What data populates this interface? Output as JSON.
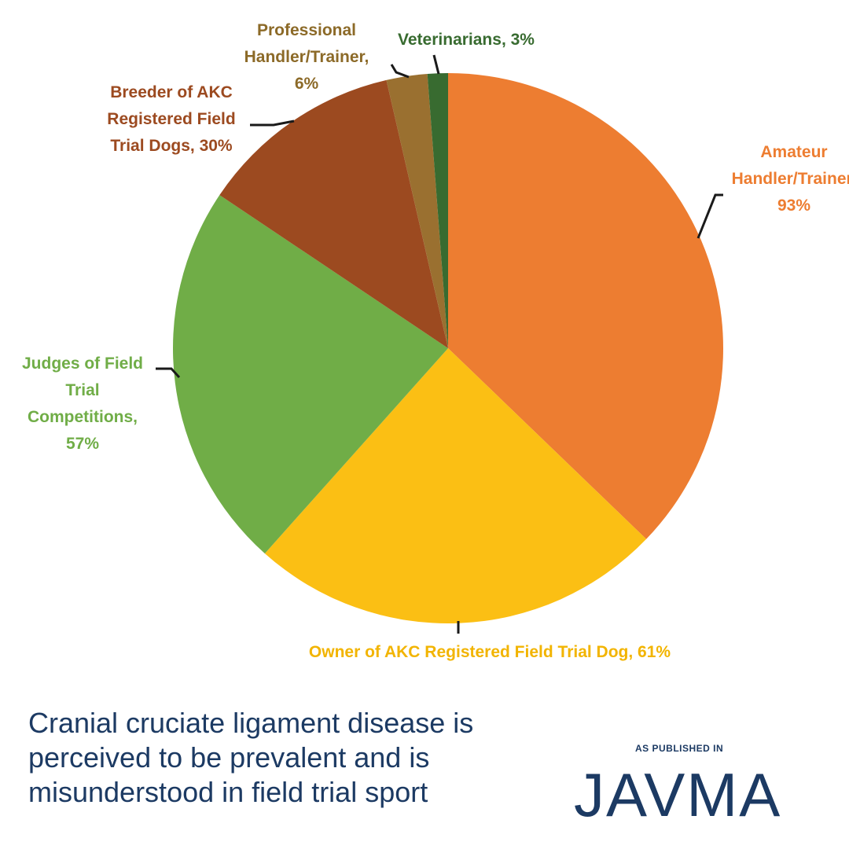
{
  "chart_data": {
    "type": "pie",
    "slices": [
      {
        "label_lines": [
          "Amateur",
          "Handler/Trainer,",
          "93%"
        ],
        "value": 93,
        "color": "#ed7d31"
      },
      {
        "label_lines": [
          "Owner of AKC Registered Field Trial Dog, 61%"
        ],
        "value": 61,
        "color": "#fbbf14"
      },
      {
        "label_lines": [
          "Judges of Field",
          "Trial",
          "Competitions,",
          "57%"
        ],
        "value": 57,
        "color": "#70ad47"
      },
      {
        "label_lines": [
          "Breeder of AKC",
          "Registered Field",
          "Trial Dogs, 30%"
        ],
        "value": 30,
        "color": "#9c4a20"
      },
      {
        "label_lines": [
          "Professional",
          "Handler/Trainer,",
          "6%"
        ],
        "value": 6,
        "color": "#9a7030"
      },
      {
        "label_lines": [
          "Veterinarians, 3%"
        ],
        "value": 3,
        "color": "#386b30"
      }
    ],
    "label_colors": [
      "#ed7d31",
      "#f2b400",
      "#70ad47",
      "#9c4a20",
      "#8c6a28",
      "#386b30"
    ]
  },
  "caption": {
    "lines": [
      "Cranial cruciate ligament disease is",
      "perceived to be prevalent and is",
      "misunderstood in field trial sport"
    ]
  },
  "publication": {
    "published_in": "AS PUBLISHED IN",
    "logo_text": "JAVMA"
  },
  "colors": {
    "caption": "#1c3a63",
    "logo": "#1c3a63"
  }
}
